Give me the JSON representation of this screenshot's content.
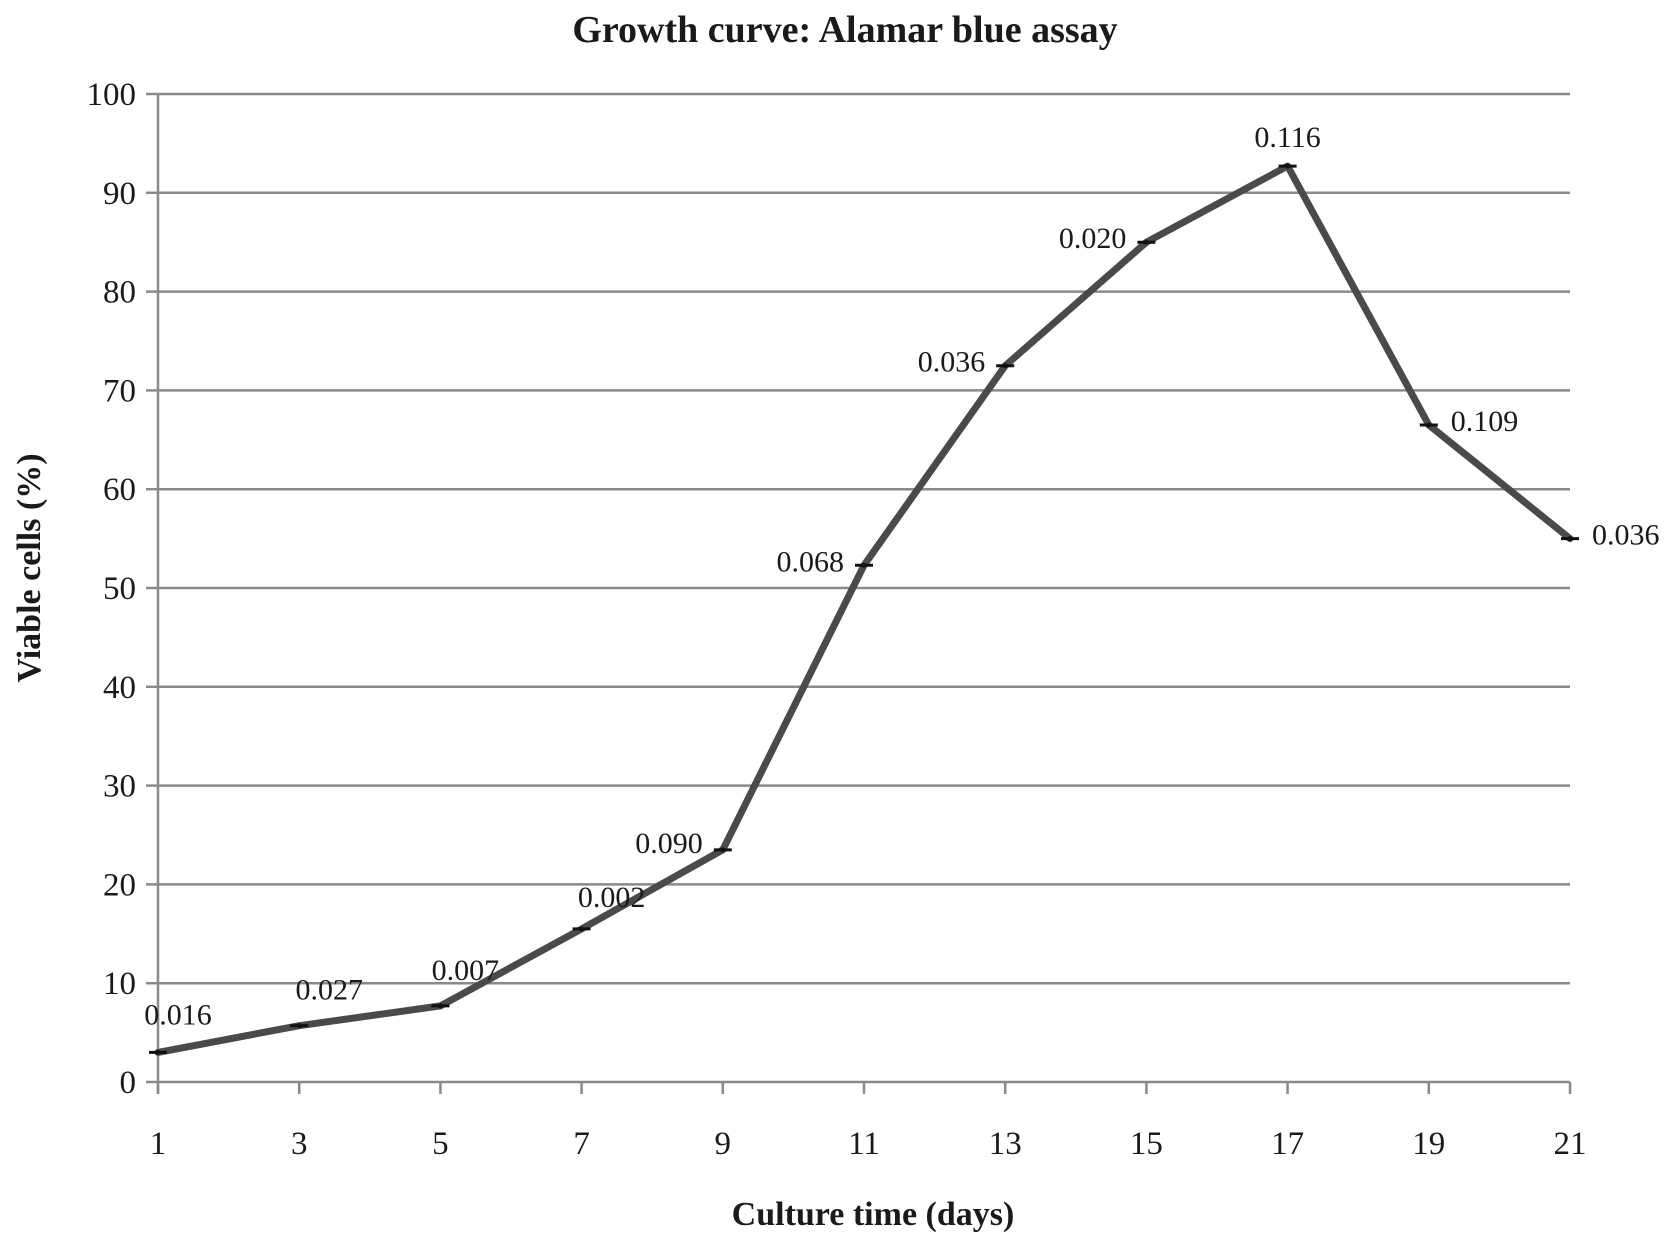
{
  "chart_data": {
    "type": "line",
    "title": "Growth curve: Alamar blue assay",
    "xlabel": "Culture time (days)",
    "ylabel": "Viable cells (%)",
    "x": [
      1,
      3,
      5,
      7,
      9,
      11,
      13,
      15,
      17,
      19,
      21
    ],
    "x_tick_labels": [
      "1",
      "3",
      "5",
      "7",
      "9",
      "11",
      "13",
      "15",
      "17",
      "19",
      "21"
    ],
    "ylim": [
      0,
      100
    ],
    "y_ticks": [
      0,
      10,
      20,
      30,
      40,
      50,
      60,
      70,
      80,
      90,
      100
    ],
    "grid": true,
    "series": [
      {
        "values": [
          3,
          5.7,
          7.7,
          15.5,
          23.5,
          52.3,
          72.5,
          85,
          92.7,
          66.5,
          55
        ],
        "data_labels": [
          "0.016",
          "0.027",
          "0.007",
          "0.002",
          "0.090",
          "0.068",
          "0.036",
          "0.020",
          "0.116",
          "0.109",
          "0.036"
        ],
        "color": "#4a4a4a"
      }
    ]
  }
}
